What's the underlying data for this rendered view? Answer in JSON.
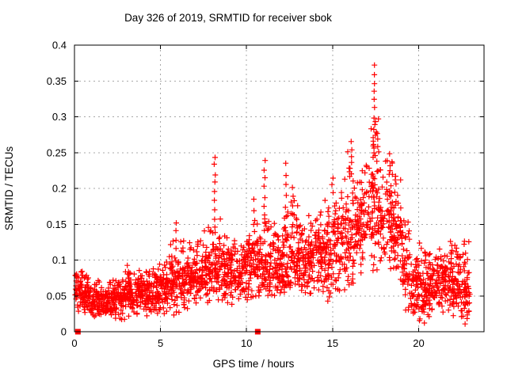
{
  "chart_data": {
    "type": "scatter",
    "title": "Day 326 of 2019, SRMTID for receiver sbok",
    "xlabel": "GPS time / hours",
    "ylabel": "SRMTID / TECUs",
    "xlim": [
      0,
      23.8
    ],
    "ylim": [
      0,
      0.4
    ],
    "xticks": {
      "values": [
        0,
        5,
        10,
        15,
        20
      ],
      "labels": [
        "0",
        "5",
        "10",
        "15",
        "20"
      ]
    },
    "yticks": {
      "values": [
        0,
        0.05,
        0.1,
        0.15,
        0.2,
        0.25,
        0.3,
        0.35,
        0.4
      ],
      "labels": [
        "0",
        "0.05",
        "0.1",
        "0.15",
        "0.2",
        "0.25",
        "0.3",
        "0.35",
        "0.4"
      ]
    },
    "grid": true,
    "legend": "none",
    "marker": {
      "shape": "plus",
      "color": "#ff0000",
      "size": 7,
      "stroke_width": 1.2
    },
    "grid_color": "#a8a8a8",
    "border_color": "#000000",
    "bins_schema": "[hour_start, hour_end, mean, sd, min, max] of SRMTID/TECUs, ~55 samples per 0.5 h bin",
    "points_per_bin": 55,
    "seed": 20190326,
    "bins": [
      [
        0,
        0.5,
        0.057,
        0.013,
        0.028,
        0.088
      ],
      [
        0.5,
        1,
        0.047,
        0.012,
        0.022,
        0.082
      ],
      [
        1,
        1.5,
        0.042,
        0.01,
        0.02,
        0.075
      ],
      [
        1.5,
        2,
        0.04,
        0.01,
        0.018,
        0.07
      ],
      [
        2,
        2.5,
        0.044,
        0.011,
        0.018,
        0.078
      ],
      [
        2.5,
        3,
        0.048,
        0.012,
        0.016,
        0.088
      ],
      [
        3,
        3.5,
        0.052,
        0.013,
        0.02,
        0.096
      ],
      [
        3.5,
        4,
        0.055,
        0.012,
        0.024,
        0.09
      ],
      [
        4,
        4.5,
        0.052,
        0.012,
        0.022,
        0.088
      ],
      [
        4.5,
        5,
        0.055,
        0.013,
        0.02,
        0.098
      ],
      [
        5,
        5.5,
        0.06,
        0.015,
        0.024,
        0.108
      ],
      [
        5.5,
        6,
        0.066,
        0.018,
        0.022,
        0.15
      ],
      [
        6,
        6.5,
        0.068,
        0.018,
        0.022,
        0.14
      ],
      [
        6.5,
        7,
        0.074,
        0.017,
        0.032,
        0.128
      ],
      [
        7,
        7.5,
        0.079,
        0.017,
        0.04,
        0.138
      ],
      [
        7.5,
        8,
        0.084,
        0.019,
        0.04,
        0.148
      ],
      [
        8,
        8.5,
        0.089,
        0.021,
        0.042,
        0.158
      ],
      [
        8.5,
        9,
        0.084,
        0.019,
        0.04,
        0.14
      ],
      [
        9,
        9.5,
        0.08,
        0.018,
        0.038,
        0.13
      ],
      [
        9.5,
        10,
        0.084,
        0.019,
        0.04,
        0.14
      ],
      [
        10,
        10.5,
        0.088,
        0.021,
        0.04,
        0.15
      ],
      [
        10.5,
        11,
        0.09,
        0.023,
        0.042,
        0.16
      ],
      [
        11,
        11.5,
        0.094,
        0.024,
        0.048,
        0.168
      ],
      [
        11.5,
        12,
        0.09,
        0.022,
        0.048,
        0.158
      ],
      [
        12,
        12.5,
        0.097,
        0.024,
        0.05,
        0.168
      ],
      [
        12.5,
        13,
        0.1,
        0.025,
        0.05,
        0.195
      ],
      [
        13,
        13.5,
        0.095,
        0.022,
        0.048,
        0.16
      ],
      [
        13.5,
        14,
        0.099,
        0.022,
        0.05,
        0.162
      ],
      [
        14,
        14.5,
        0.104,
        0.024,
        0.045,
        0.17
      ],
      [
        14.5,
        15,
        0.108,
        0.026,
        0.028,
        0.185
      ],
      [
        15,
        15.5,
        0.114,
        0.027,
        0.03,
        0.192
      ],
      [
        15.5,
        16,
        0.128,
        0.033,
        0.055,
        0.268
      ],
      [
        16,
        16.5,
        0.138,
        0.034,
        0.06,
        0.262
      ],
      [
        16.5,
        17,
        0.15,
        0.034,
        0.068,
        0.252
      ],
      [
        17,
        17.5,
        0.163,
        0.038,
        0.078,
        0.295
      ],
      [
        17.5,
        18,
        0.168,
        0.038,
        0.085,
        0.295
      ],
      [
        18,
        18.5,
        0.163,
        0.034,
        0.088,
        0.258
      ],
      [
        18.5,
        19,
        0.142,
        0.03,
        0.068,
        0.222
      ],
      [
        19,
        19.5,
        0.1,
        0.032,
        0.028,
        0.162
      ],
      [
        19.5,
        20,
        0.056,
        0.022,
        0.006,
        0.112
      ],
      [
        20,
        20.5,
        0.06,
        0.022,
        0.012,
        0.136
      ],
      [
        20.5,
        21,
        0.06,
        0.02,
        0.02,
        0.112
      ],
      [
        21,
        21.5,
        0.065,
        0.02,
        0.022,
        0.12
      ],
      [
        21.5,
        22,
        0.07,
        0.022,
        0.026,
        0.126
      ],
      [
        22,
        22.5,
        0.064,
        0.022,
        0.012,
        0.122
      ],
      [
        22.5,
        23,
        0.06,
        0.021,
        0.006,
        0.13
      ]
    ],
    "spikes_schema": "[hour_center, y_min, y_max, n_points, hour_width] - vertical streaks of isolated high points",
    "spikes": [
      [
        5.9,
        0.115,
        0.152,
        4,
        0.08
      ],
      [
        8.15,
        0.145,
        0.245,
        9,
        0.08
      ],
      [
        10.45,
        0.14,
        0.185,
        4,
        0.08
      ],
      [
        11.05,
        0.15,
        0.24,
        8,
        0.08
      ],
      [
        12.3,
        0.13,
        0.235,
        8,
        0.1
      ],
      [
        12.7,
        0.15,
        0.2,
        5,
        0.08
      ],
      [
        15.0,
        0.195,
        0.215,
        3,
        0.08
      ],
      [
        16.05,
        0.215,
        0.265,
        6,
        0.15
      ],
      [
        17.42,
        0.3,
        0.372,
        7,
        0.05
      ],
      [
        17.5,
        0.238,
        0.296,
        14,
        0.35
      ]
    ],
    "zero_square_points": [
      [
        0.2,
        0
      ],
      [
        10.65,
        0
      ]
    ]
  }
}
